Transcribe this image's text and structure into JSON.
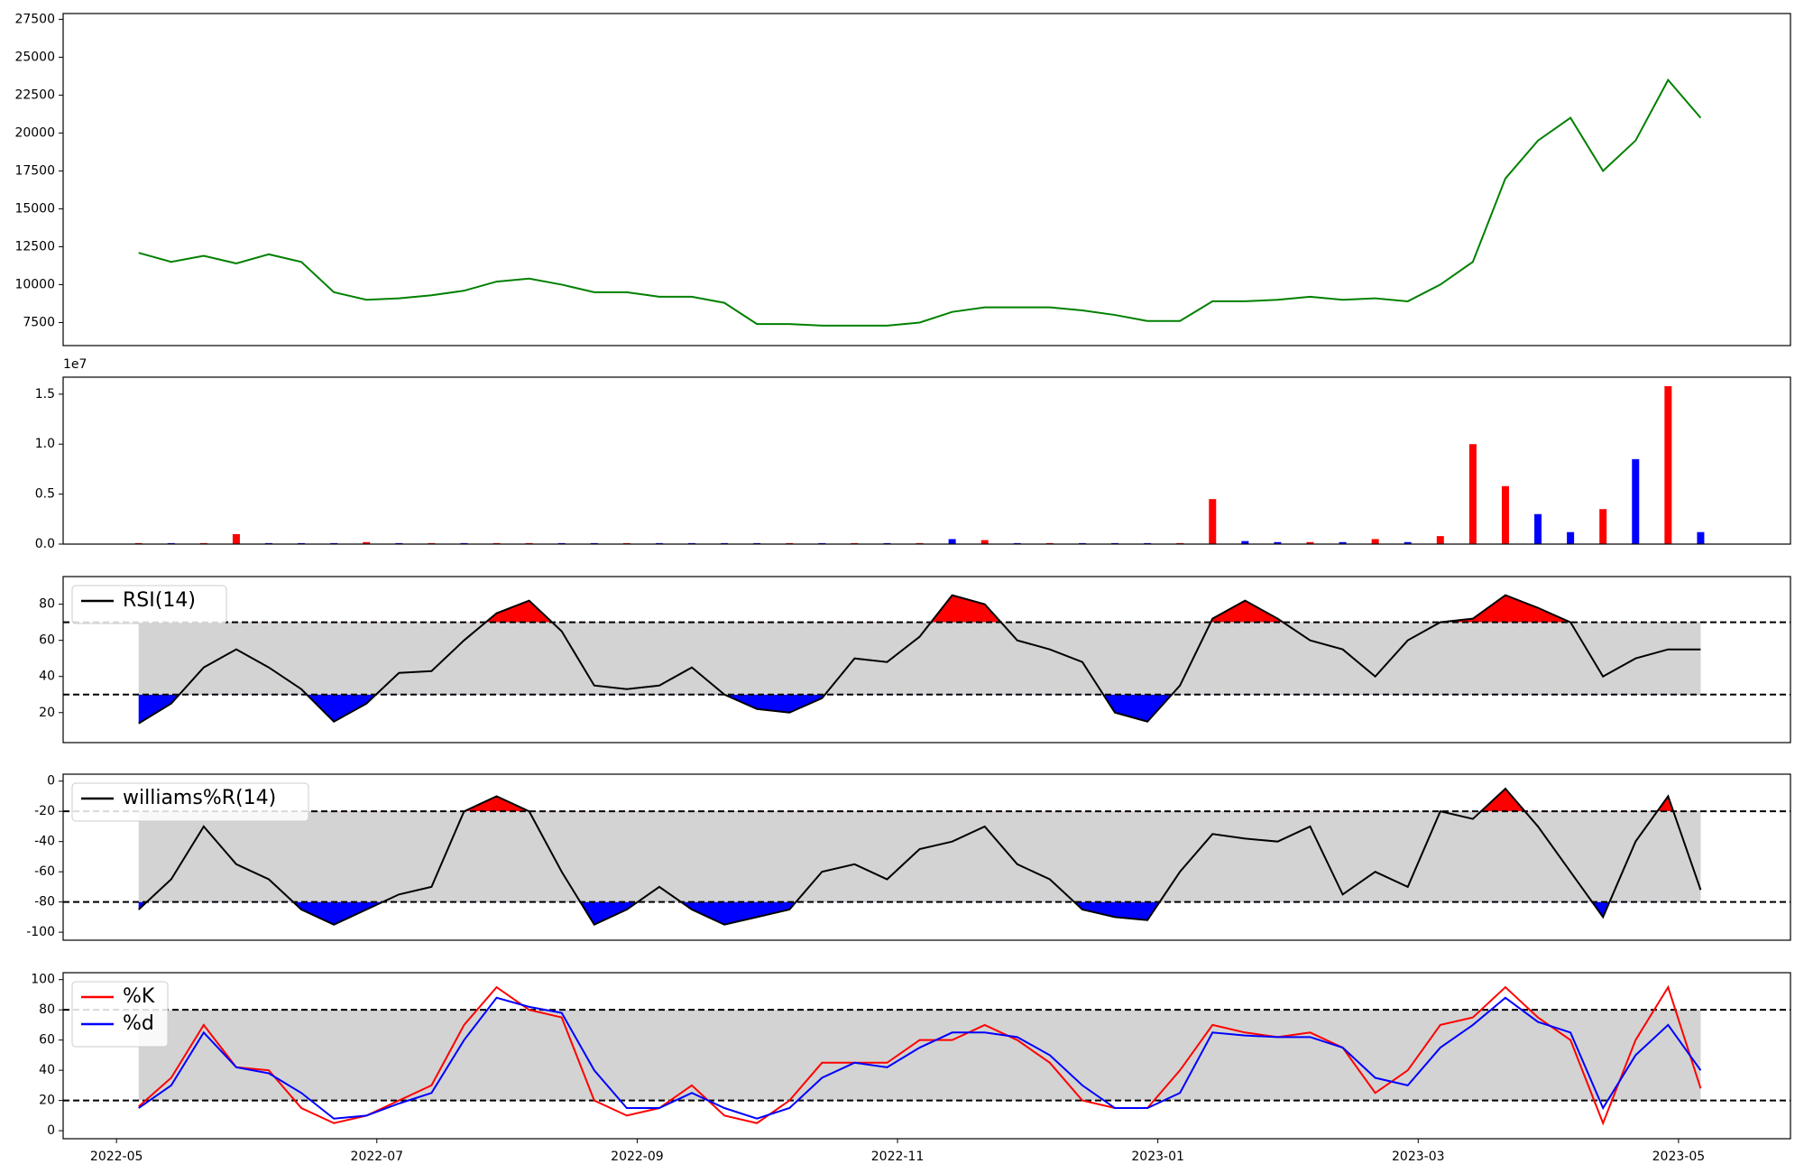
{
  "chart_data": [
    {
      "type": "line",
      "x": [
        0.17,
        0.42,
        0.67,
        0.92,
        1.17,
        1.42,
        1.67,
        1.92,
        2.17,
        2.42,
        2.67,
        2.92,
        3.17,
        3.42,
        3.67,
        3.92,
        4.17,
        4.42,
        4.67,
        4.92,
        5.17,
        5.42,
        5.67,
        5.92,
        6.17,
        6.42,
        6.67,
        6.92,
        7.17,
        7.42,
        7.67,
        7.92,
        8.17,
        8.42,
        8.67,
        8.92,
        9.17,
        9.42,
        9.67,
        9.92,
        10.17,
        10.42,
        10.67,
        10.92,
        11.17,
        11.42,
        11.67,
        11.92,
        12.17
      ],
      "series": [
        {
          "color": "green",
          "values": [
            12100,
            11500,
            11900,
            11400,
            12000,
            11500,
            9500,
            9000,
            9100,
            9300,
            9600,
            10200,
            10400,
            10000,
            9500,
            9500,
            9200,
            9200,
            8800,
            7400,
            7400,
            7300,
            7300,
            7300,
            7500,
            8200,
            8500,
            8500,
            8500,
            8300,
            8000,
            7600,
            7600,
            8900,
            8900,
            9000,
            9200,
            9000,
            9100,
            8900,
            10000,
            11500,
            17000,
            19500,
            21000,
            17500,
            19500,
            23500,
            21000
          ]
        }
      ],
      "ylim": [
        5980,
        27880
      ],
      "yticks": [
        7500,
        10000,
        12500,
        15000,
        17500,
        20000,
        22500,
        25000,
        27500
      ]
    },
    {
      "type": "bar",
      "offset_label": "1e7",
      "values": [
        0.01,
        0.01,
        0.01,
        0.1,
        0.01,
        0.01,
        0.01,
        0.02,
        0.01,
        0.01,
        0.01,
        0.01,
        0.01,
        0.01,
        0.01,
        0.01,
        0.01,
        0.01,
        0.01,
        0.01,
        0.01,
        0.01,
        0.01,
        0.01,
        0.01,
        0.05,
        0.04,
        0.01,
        0.01,
        0.01,
        0.01,
        0.01,
        0.01,
        0.45,
        0.03,
        0.02,
        0.02,
        0.02,
        0.05,
        0.02,
        0.08,
        1.0,
        0.58,
        0.3,
        0.12,
        0.35,
        0.85,
        1.58,
        0.12
      ],
      "colors": [
        "red",
        "blue",
        "red",
        "red",
        "blue",
        "blue",
        "blue",
        "red",
        "blue",
        "red",
        "blue",
        "red",
        "red",
        "blue",
        "blue",
        "red",
        "blue",
        "blue",
        "blue",
        "blue",
        "red",
        "blue",
        "red",
        "blue",
        "red",
        "blue",
        "red",
        "blue",
        "red",
        "blue",
        "blue",
        "blue",
        "red",
        "red",
        "blue",
        "blue",
        "red",
        "blue",
        "red",
        "blue",
        "red",
        "red",
        "red",
        "blue",
        "blue",
        "red",
        "blue",
        "red",
        "blue"
      ],
      "ylim": [
        0,
        1.67
      ],
      "yticks": [
        {
          "value": 0,
          "label": "0.0"
        },
        {
          "value": 0.5,
          "label": "0.5"
        },
        {
          "value": 1,
          "label": "1.0"
        },
        {
          "value": 1.5,
          "label": "1.5"
        }
      ]
    },
    {
      "type": "oscillator",
      "legend": "upper left",
      "series": [
        {
          "name": "RSI(14)",
          "color": "black",
          "values": [
            14,
            25,
            45,
            55,
            45,
            33,
            15,
            25,
            42,
            43,
            60,
            75,
            82,
            65,
            35,
            33,
            35,
            45,
            30,
            22,
            20,
            28,
            50,
            48,
            62,
            85,
            80,
            60,
            55,
            48,
            20,
            15,
            35,
            72,
            82,
            72,
            60,
            55,
            40,
            60,
            70,
            72,
            85,
            78,
            70,
            40,
            50,
            55,
            55
          ]
        }
      ],
      "thresholds": [
        30,
        70
      ],
      "band_color": "lightgray",
      "above_color": "red",
      "below_color": "blue",
      "ylim": [
        3.4,
        95.3
      ],
      "yticks": [
        20,
        40,
        60,
        80
      ]
    },
    {
      "type": "oscillator",
      "legend": "upper left",
      "series": [
        {
          "name": "williams%R(14)",
          "color": "black",
          "values": [
            -85,
            -65,
            -30,
            -55,
            -65,
            -85,
            -95,
            -85,
            -75,
            -70,
            -20,
            -10,
            -20,
            -60,
            -95,
            -85,
            -70,
            -85,
            -95,
            -90,
            -85,
            -60,
            -55,
            -65,
            -45,
            -40,
            -30,
            -55,
            -65,
            -85,
            -90,
            -92,
            -60,
            -35,
            -38,
            -40,
            -30,
            -75,
            -60,
            -70,
            -20,
            -25,
            -5,
            -30,
            -60,
            -90,
            -40,
            -10,
            -72
          ]
        }
      ],
      "thresholds": [
        -80,
        -20
      ],
      "band_color": "lightgray",
      "above_color": "red",
      "below_color": "blue",
      "ylim": [
        -105.3,
        4.6
      ],
      "yticks": [
        -100,
        -80,
        -60,
        -40,
        -20,
        0
      ]
    },
    {
      "type": "oscillator",
      "legend": "upper left",
      "series": [
        {
          "name": "%K",
          "color": "red",
          "values": [
            16,
            35,
            70,
            42,
            40,
            15,
            5,
            10,
            20,
            30,
            70,
            95,
            80,
            75,
            20,
            10,
            15,
            30,
            10,
            5,
            20,
            45,
            45,
            45,
            60,
            60,
            70,
            60,
            45,
            20,
            15,
            15,
            40,
            70,
            65,
            62,
            65,
            55,
            25,
            40,
            70,
            75,
            95,
            75,
            60,
            5,
            60,
            95,
            28
          ]
        },
        {
          "name": "%d",
          "color": "blue",
          "values": [
            15,
            30,
            65,
            42,
            38,
            25,
            8,
            10,
            18,
            25,
            60,
            88,
            82,
            78,
            40,
            15,
            15,
            25,
            15,
            8,
            15,
            35,
            45,
            42,
            55,
            65,
            65,
            62,
            50,
            30,
            15,
            15,
            25,
            65,
            63,
            62,
            62,
            55,
            35,
            30,
            55,
            70,
            88,
            72,
            65,
            15,
            50,
            70,
            40
          ]
        }
      ],
      "thresholds": [
        20,
        80
      ],
      "band_color": "lightgray",
      "ylim": [
        -5.3,
        104.6
      ],
      "yticks": [
        0,
        20,
        40,
        60,
        80,
        100
      ],
      "xlim": [
        -0.41,
        12.86
      ],
      "xticks": [
        {
          "value": 0,
          "label": "2022-05"
        },
        {
          "value": 2,
          "label": "2022-07"
        },
        {
          "value": 4,
          "label": "2022-09"
        },
        {
          "value": 6,
          "label": "2022-11"
        },
        {
          "value": 8,
          "label": "2023-01"
        },
        {
          "value": 10,
          "label": "2023-03"
        },
        {
          "value": 12,
          "label": "2023-05"
        }
      ]
    }
  ]
}
